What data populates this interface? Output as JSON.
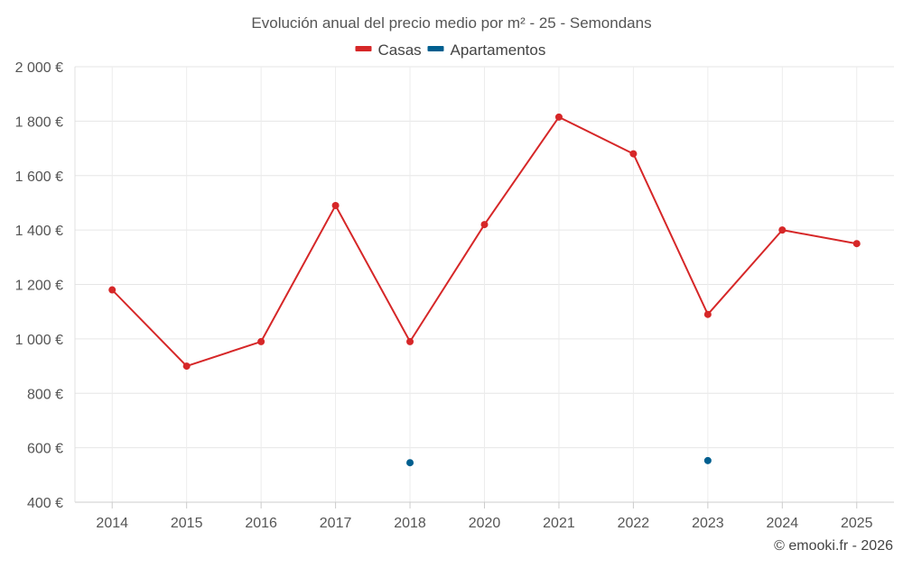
{
  "chart_data": {
    "type": "line",
    "title": "Evolución anual del precio medio por m² - 25 - Semondans",
    "categories": [
      "2014",
      "2015",
      "2016",
      "2017",
      "2018",
      "2020",
      "2021",
      "2022",
      "2023",
      "2024",
      "2025"
    ],
    "series": [
      {
        "name": "Casas",
        "color": "#d62728",
        "values": [
          1180,
          900,
          990,
          1490,
          990,
          1420,
          1815,
          1680,
          1090,
          1400,
          1350
        ]
      },
      {
        "name": "Apartamentos",
        "color": "#005f8f",
        "values": [
          null,
          null,
          null,
          null,
          545,
          null,
          null,
          null,
          553,
          null,
          null
        ]
      }
    ],
    "y_ticks": [
      400,
      600,
      800,
      1000,
      1200,
      1400,
      1600,
      1800,
      2000
    ],
    "y_tick_labels": [
      "400 €",
      "600 €",
      "800 €",
      "1 000 €",
      "1 200 €",
      "1 400 €",
      "1 600 €",
      "1 800 €",
      "2 000 €"
    ],
    "ylim": [
      400,
      2000
    ],
    "xlabel": "",
    "ylabel": "",
    "grid": true,
    "legend": "top-center"
  },
  "credit": "© emooki.fr - 2026"
}
